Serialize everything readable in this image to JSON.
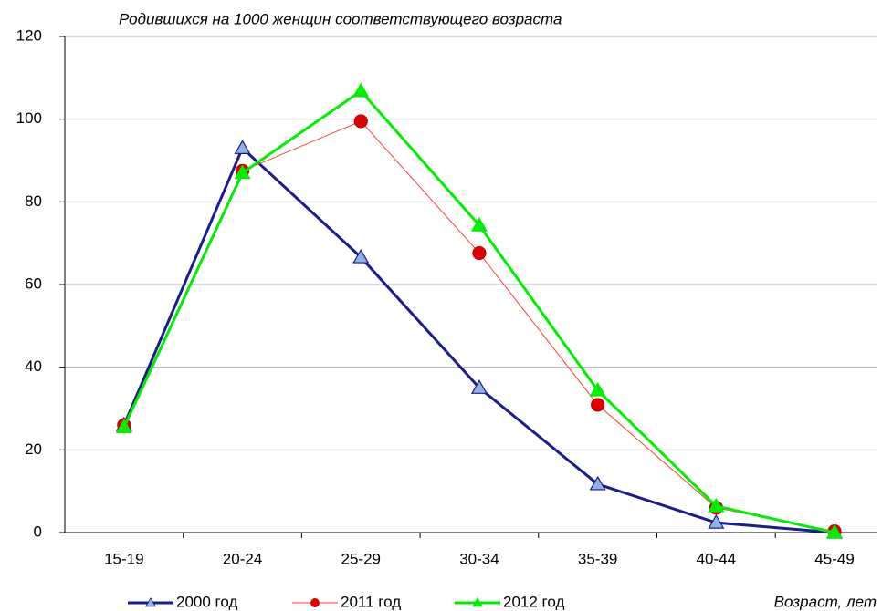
{
  "chart_data": {
    "type": "line",
    "title": "Родившихся на 1000 женщин соответствующего возраста",
    "x_label": "Возраст, лет",
    "categories": [
      "15-19",
      "20-24",
      "25-29",
      "30-34",
      "35-39",
      "40-44",
      "45-49"
    ],
    "series": [
      {
        "name": "2000 год",
        "color": "#1c1c8e",
        "marker": "triangle",
        "marker_fill": "#8db4e2",
        "line_width": 3,
        "values": [
          26,
          93,
          66.6,
          35,
          11.7,
          2.4,
          0
        ]
      },
      {
        "name": "2011 год",
        "color": "#ff3b3b",
        "marker": "circle",
        "marker_fill": "#e00000",
        "line_width": 1,
        "values": [
          26,
          87.5,
          99.5,
          67.6,
          30.9,
          6,
          0.3
        ]
      },
      {
        "name": "2012 год",
        "color": "#00ee00",
        "marker": "triangle",
        "marker_fill": "#00ee00",
        "line_width": 3,
        "values": [
          25.5,
          87,
          106.8,
          74.3,
          34.4,
          6.4,
          0
        ]
      }
    ],
    "ylim": [
      0,
      120
    ],
    "yticks": [
      0,
      20,
      40,
      60,
      80,
      100,
      120
    ],
    "grid": true,
    "legend": "bottom"
  }
}
